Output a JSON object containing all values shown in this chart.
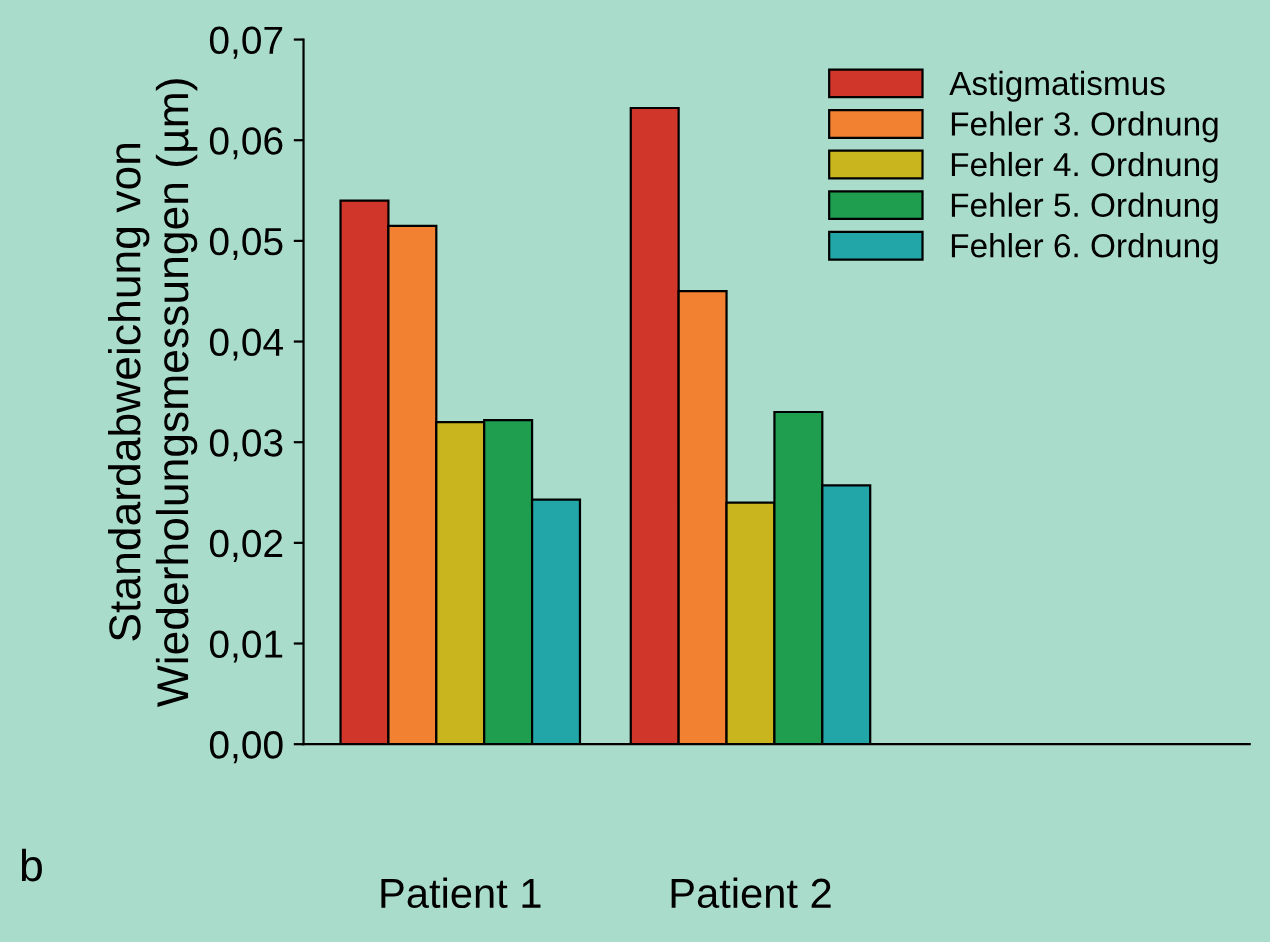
{
  "chart_data": {
    "type": "bar",
    "ylabel": "Standardabweichung von\nWiederholungsmessungen (µm)",
    "categories": [
      "Patient 1",
      "Patient 2"
    ],
    "series": [
      {
        "name": "Astigmatismus",
        "color": "#d0362a",
        "values": [
          0.054,
          0.0632
        ]
      },
      {
        "name": "Fehler 3. Ordnung",
        "color": "#f28232",
        "values": [
          0.0515,
          0.045
        ]
      },
      {
        "name": "Fehler 4. Ordnung",
        "color": "#c9b51e",
        "values": [
          0.032,
          0.024
        ]
      },
      {
        "name": "Fehler 5. Ordnung",
        "color": "#1e9e4e",
        "values": [
          0.0322,
          0.033
        ]
      },
      {
        "name": "Fehler 6. Ordnung",
        "color": "#22a6a8",
        "values": [
          0.0243,
          0.0257
        ]
      }
    ],
    "ylim": [
      0,
      0.07
    ],
    "yticks": [
      {
        "value": 0,
        "label": "0,00"
      },
      {
        "value": 0.01,
        "label": "0,01"
      },
      {
        "value": 0.02,
        "label": "0,02"
      },
      {
        "value": 0.03,
        "label": "0,03"
      },
      {
        "value": 0.04,
        "label": "0,04"
      },
      {
        "value": 0.05,
        "label": "0,05"
      },
      {
        "value": 0.06,
        "label": "0,06"
      },
      {
        "value": 0.07,
        "label": "0,07"
      }
    ],
    "legend": "top right",
    "grid": false,
    "annotations": [
      "b"
    ]
  }
}
